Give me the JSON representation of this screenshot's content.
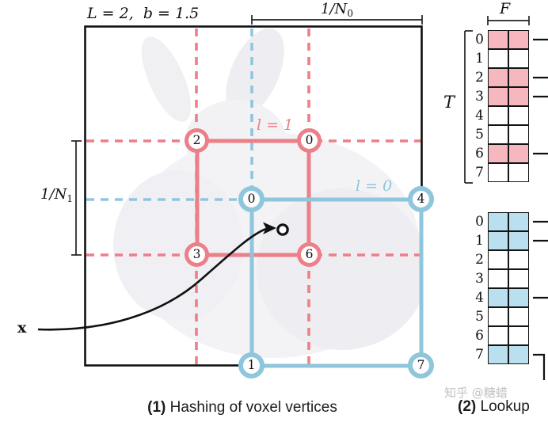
{
  "figure": {
    "panel1": {
      "params_label": "L = 2,  b = 1.5",
      "n0_base": "1/N",
      "n0_sub": "0",
      "n1_base": "1/N",
      "n1_sub": "1",
      "level1_label": "l = 1",
      "level0_label": "l = 0",
      "x_label": "x",
      "red_vertices": [
        "2",
        "0",
        "3",
        "6"
      ],
      "blue_vertices": [
        "0",
        "4",
        "1",
        "7"
      ]
    },
    "panel2": {
      "t_label": "T",
      "f_label": "F",
      "red_table": {
        "row_labels": [
          "0",
          "1",
          "2",
          "3",
          "4",
          "5",
          "6",
          "7"
        ],
        "filled_rows": [
          0,
          2,
          3,
          6
        ],
        "connector_rows": [
          0,
          2,
          3,
          6
        ]
      },
      "blue_table": {
        "row_labels": [
          "0",
          "1",
          "2",
          "3",
          "4",
          "5",
          "6",
          "7"
        ],
        "filled_rows": [
          0,
          1,
          4,
          7
        ],
        "connector_rows": [
          0,
          1,
          4,
          7
        ]
      }
    },
    "captions": {
      "c1_num": "(1)",
      "c1_text": " Hashing of voxel vertices",
      "c2_num": "(2)",
      "c2_text": " Lookup"
    },
    "watermark": "知乎 @糖蜡",
    "colors": {
      "red": "#ec7f88",
      "red_fill": "#f6b8be",
      "blue": "#8fc6dc",
      "blue_fill": "#badfee"
    }
  }
}
